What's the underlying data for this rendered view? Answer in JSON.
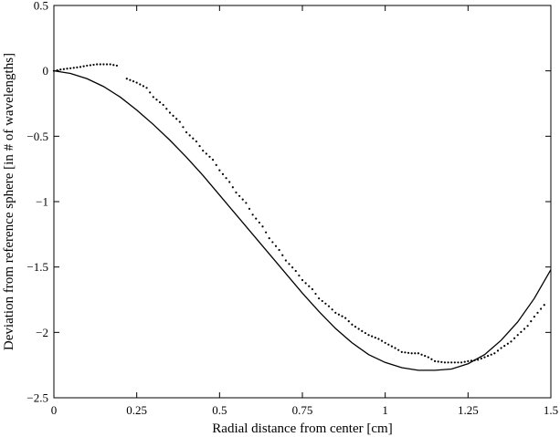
{
  "chart_data": {
    "type": "line",
    "xlabel": "Radial distance from center [cm]",
    "ylabel": "Deviation from reference sphere [in # of wavelengths]",
    "xlim": [
      0,
      1.5
    ],
    "ylim": [
      -2.5,
      0.5
    ],
    "xticks": [
      {
        "value": 0,
        "label": "0"
      },
      {
        "value": 0.25,
        "label": "0.25"
      },
      {
        "value": 0.5,
        "label": "0.5"
      },
      {
        "value": 0.75,
        "label": "0.75"
      },
      {
        "value": 1,
        "label": "1"
      },
      {
        "value": 1.25,
        "label": "1.25"
      },
      {
        "value": 1.5,
        "label": "1.5"
      }
    ],
    "yticks": [
      {
        "value": 0.5,
        "label": "0.5"
      },
      {
        "value": 0,
        "label": "0"
      },
      {
        "value": -0.5,
        "label": "−0.5"
      },
      {
        "value": -1,
        "label": "−1"
      },
      {
        "value": -1.5,
        "label": "−1.5"
      },
      {
        "value": -2,
        "label": "−2"
      },
      {
        "value": -2.5,
        "label": "−2.5"
      }
    ],
    "grid": false,
    "series": [
      {
        "style": "solid",
        "color": "#000000",
        "x": [
          0,
          0.05,
          0.1,
          0.15,
          0.2,
          0.25,
          0.3,
          0.35,
          0.4,
          0.45,
          0.5,
          0.55,
          0.6,
          0.65,
          0.7,
          0.75,
          0.8,
          0.85,
          0.9,
          0.95,
          1.0,
          1.05,
          1.1,
          1.15,
          1.2,
          1.25,
          1.3,
          1.35,
          1.4,
          1.45,
          1.5
        ],
        "y": [
          0,
          -0.02,
          -0.06,
          -0.12,
          -0.2,
          -0.3,
          -0.41,
          -0.53,
          -0.66,
          -0.8,
          -0.95,
          -1.1,
          -1.25,
          -1.4,
          -1.55,
          -1.7,
          -1.84,
          -1.97,
          -2.08,
          -2.17,
          -2.23,
          -2.27,
          -2.29,
          -2.29,
          -2.28,
          -2.24,
          -2.17,
          -2.06,
          -1.92,
          -1.74,
          -1.52
        ]
      },
      {
        "style": "dotted",
        "color": "#000000",
        "x": [
          0,
          0.02,
          0.05,
          0.08,
          0.1,
          0.13,
          0.15,
          0.17,
          0.19,
          0.22,
          0.25,
          0.28,
          0.3,
          0.33,
          0.35,
          0.38,
          0.4,
          0.43,
          0.45,
          0.48,
          0.5,
          0.53,
          0.55,
          0.58,
          0.6,
          0.63,
          0.65,
          0.68,
          0.7,
          0.73,
          0.75,
          0.78,
          0.8,
          0.83,
          0.85,
          0.88,
          0.9,
          0.93,
          0.95,
          0.98,
          1.0,
          1.03,
          1.05,
          1.08,
          1.1,
          1.13,
          1.15,
          1.18,
          1.2,
          1.23,
          1.25,
          1.28,
          1.3,
          1.33,
          1.35,
          1.38,
          1.4,
          1.43,
          1.45,
          1.48
        ],
        "y": [
          0,
          0.01,
          0.02,
          0.03,
          0.04,
          0.05,
          0.05,
          0.05,
          0.04,
          -0.06,
          -0.09,
          -0.13,
          -0.2,
          -0.26,
          -0.32,
          -0.39,
          -0.47,
          -0.54,
          -0.61,
          -0.68,
          -0.76,
          -0.85,
          -0.93,
          -1.01,
          -1.1,
          -1.19,
          -1.28,
          -1.37,
          -1.45,
          -1.53,
          -1.6,
          -1.67,
          -1.74,
          -1.8,
          -1.85,
          -1.89,
          -1.94,
          -1.99,
          -2.02,
          -2.05,
          -2.08,
          -2.12,
          -2.15,
          -2.16,
          -2.16,
          -2.19,
          -2.22,
          -2.23,
          -2.23,
          -2.23,
          -2.22,
          -2.21,
          -2.19,
          -2.16,
          -2.12,
          -2.07,
          -2.02,
          -1.95,
          -1.88,
          -1.79
        ]
      }
    ]
  }
}
